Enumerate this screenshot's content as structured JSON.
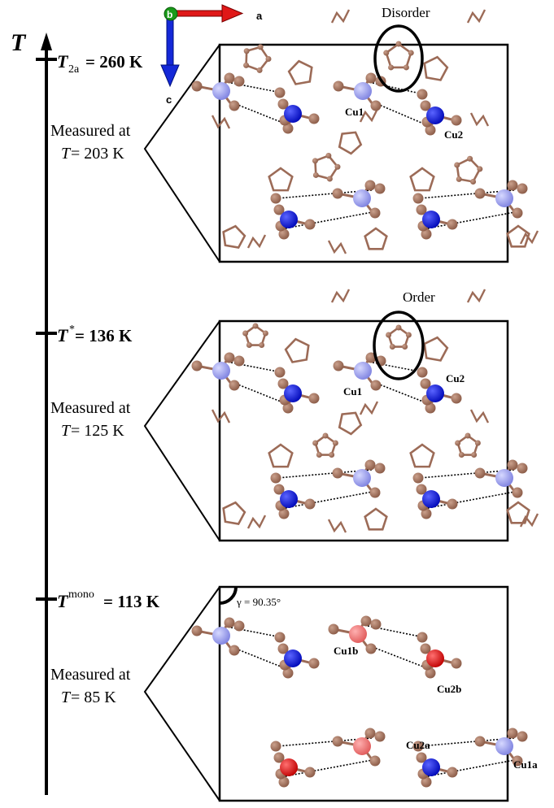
{
  "axes": {
    "main_axis_label": "T",
    "a_label": "a",
    "b_label": "b",
    "c_label": "c"
  },
  "levels": [
    {
      "id": "t2a",
      "symbol": "T",
      "subscript": "2a",
      "superscript": "",
      "value_text": " = 260 K",
      "measured_line1": "Measured at",
      "measured_T": "T",
      "measured_value": " = 203 K",
      "annotation": "Disorder",
      "cu_labels": [
        "Cu1",
        "Cu2"
      ]
    },
    {
      "id": "tstar",
      "symbol": "T",
      "subscript": "",
      "superscript": "*",
      "value_text": " = 136 K",
      "measured_line1": "Measured at",
      "measured_T": "T",
      "measured_value": " = 125 K",
      "annotation": "Order",
      "cu_labels": [
        "Cu1",
        "Cu2"
      ]
    },
    {
      "id": "tmono",
      "symbol": "T",
      "subscript": "",
      "superscript": "mono",
      "value_text": " = 113 K",
      "measured_line1": "Measured at",
      "measured_T": "T",
      "measured_value": " = 85 K",
      "angle_label": "γ = 90.35°",
      "cu_labels": [
        "Cu1b",
        "Cu2b",
        "Cu2a",
        "Cu1a"
      ]
    }
  ],
  "colors": {
    "cu_light": "#8f93ea",
    "cu_dark": "#0a14d8",
    "cu_red": "#e01818",
    "cu_pink": "#f07070",
    "carbon": "#9c6b57",
    "hydrogen": "#c8c8f0",
    "axis_a": "#e01818",
    "axis_c": "#1428d8",
    "axis_b": "#1a9a1a"
  }
}
